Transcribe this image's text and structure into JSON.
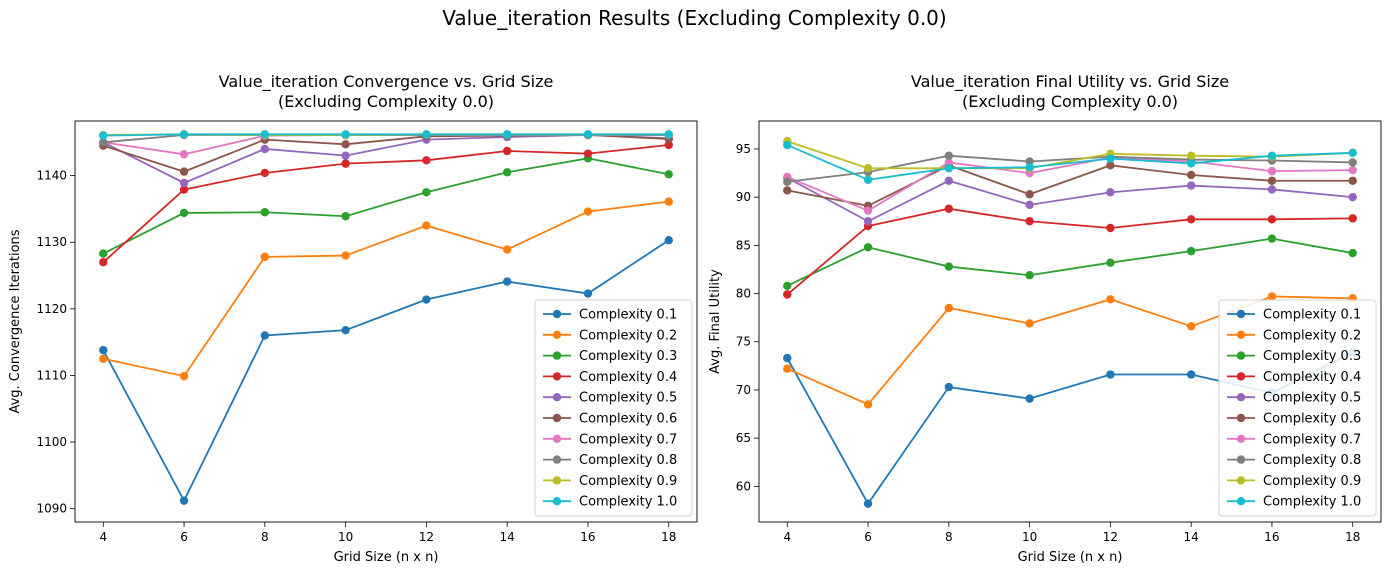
{
  "suptitle": "Value_iteration Results (Excluding Complexity 0.0)",
  "colors": [
    "#1f77b4",
    "#ff7f0e",
    "#2ca02c",
    "#d62728",
    "#9467bd",
    "#8c564b",
    "#e377c2",
    "#7f7f7f",
    "#bcbd22",
    "#17becf"
  ],
  "chart_data": [
    {
      "type": "line",
      "title": [
        "Value_iteration Convergence vs. Grid Size",
        "(Excluding Complexity 0.0)"
      ],
      "xlabel": "Grid Size (n x n)",
      "ylabel": "Avg. Convergence Iterations",
      "xlim": [
        3.3,
        18.7
      ],
      "ylim": [
        1088,
        1148.2
      ],
      "xticks": [
        4,
        6,
        8,
        10,
        12,
        14,
        16,
        18
      ],
      "yticks": [
        1090,
        1100,
        1110,
        1120,
        1130,
        1140
      ],
      "legend": "lower-right",
      "x": [
        4,
        6,
        8,
        10,
        12,
        14,
        16,
        18
      ],
      "series": [
        {
          "name": "Complexity 0.1",
          "values": [
            1113.8,
            1091.2,
            1116.0,
            1116.8,
            1121.4,
            1124.1,
            1122.3,
            1130.3
          ]
        },
        {
          "name": "Complexity 0.2",
          "values": [
            1112.5,
            1109.9,
            1127.8,
            1128.0,
            1132.5,
            1128.9,
            1134.6,
            1136.1
          ]
        },
        {
          "name": "Complexity 0.3",
          "values": [
            1128.3,
            1134.4,
            1134.5,
            1133.9,
            1137.5,
            1140.5,
            1142.6,
            1140.2
          ]
        },
        {
          "name": "Complexity 0.4",
          "values": [
            1127.0,
            1137.9,
            1140.4,
            1141.8,
            1142.3,
            1143.7,
            1143.3,
            1144.6
          ]
        },
        {
          "name": "Complexity 0.5",
          "values": [
            1145.0,
            1138.9,
            1144.0,
            1143.0,
            1145.4,
            1145.8,
            1146.1,
            1145.6
          ]
        },
        {
          "name": "Complexity 0.6",
          "values": [
            1144.5,
            1140.6,
            1145.4,
            1144.7,
            1145.9,
            1146.0,
            1146.1,
            1145.5
          ]
        },
        {
          "name": "Complexity 0.7",
          "values": [
            1145.0,
            1143.2,
            1146.0,
            1146.1,
            1146.1,
            1146.1,
            1146.1,
            1146.1
          ]
        },
        {
          "name": "Complexity 0.8",
          "values": [
            1145.0,
            1146.1,
            1146.1,
            1146.1,
            1146.1,
            1146.1,
            1146.1,
            1146.1
          ]
        },
        {
          "name": "Complexity 0.9",
          "values": [
            1146.1,
            1146.2,
            1146.1,
            1146.1,
            1146.2,
            1146.2,
            1146.2,
            1146.2
          ]
        },
        {
          "name": "Complexity 1.0",
          "values": [
            1146.0,
            1146.2,
            1146.2,
            1146.2,
            1146.2,
            1146.2,
            1146.2,
            1146.2
          ]
        }
      ]
    },
    {
      "type": "line",
      "title": [
        "Value_iteration Final Utility vs. Grid Size",
        "(Excluding Complexity 0.0)"
      ],
      "xlabel": "Grid Size (n x n)",
      "ylabel": "Avg. Final Utility",
      "xlim": [
        3.3,
        18.7
      ],
      "ylim": [
        56.3,
        97.9
      ],
      "xticks": [
        4,
        6,
        8,
        10,
        12,
        14,
        16,
        18
      ],
      "yticks": [
        60,
        65,
        70,
        75,
        80,
        85,
        90,
        95
      ],
      "legend": "lower-right",
      "x": [
        4,
        6,
        8,
        10,
        12,
        14,
        16,
        18
      ],
      "series": [
        {
          "name": "Complexity 0.1",
          "values": [
            73.3,
            58.2,
            70.3,
            69.1,
            71.6,
            71.6,
            69.7,
            73.9
          ]
        },
        {
          "name": "Complexity 0.2",
          "values": [
            72.2,
            68.5,
            78.5,
            76.9,
            79.4,
            76.6,
            79.7,
            79.5
          ]
        },
        {
          "name": "Complexity 0.3",
          "values": [
            80.8,
            84.8,
            82.8,
            81.9,
            83.2,
            84.4,
            85.7,
            84.2
          ]
        },
        {
          "name": "Complexity 0.4",
          "values": [
            79.9,
            87.0,
            88.8,
            87.5,
            86.8,
            87.7,
            87.7,
            87.8
          ]
        },
        {
          "name": "Complexity 0.5",
          "values": [
            92.0,
            87.5,
            91.7,
            89.2,
            90.5,
            91.2,
            90.8,
            90.0
          ]
        },
        {
          "name": "Complexity 0.6",
          "values": [
            90.7,
            89.1,
            93.3,
            90.3,
            93.3,
            92.3,
            91.7,
            91.7
          ]
        },
        {
          "name": "Complexity 0.7",
          "values": [
            92.1,
            88.6,
            93.6,
            92.5,
            94.1,
            93.7,
            92.7,
            92.8
          ]
        },
        {
          "name": "Complexity 0.8",
          "values": [
            91.6,
            92.6,
            94.3,
            93.7,
            94.2,
            93.9,
            93.8,
            93.6
          ]
        },
        {
          "name": "Complexity 0.9",
          "values": [
            95.8,
            93.0,
            93.0,
            93.0,
            94.5,
            94.3,
            94.2,
            94.6
          ]
        },
        {
          "name": "Complexity 1.0",
          "values": [
            95.4,
            91.8,
            93.0,
            93.1,
            94.0,
            93.5,
            94.3,
            94.6
          ]
        }
      ]
    }
  ]
}
